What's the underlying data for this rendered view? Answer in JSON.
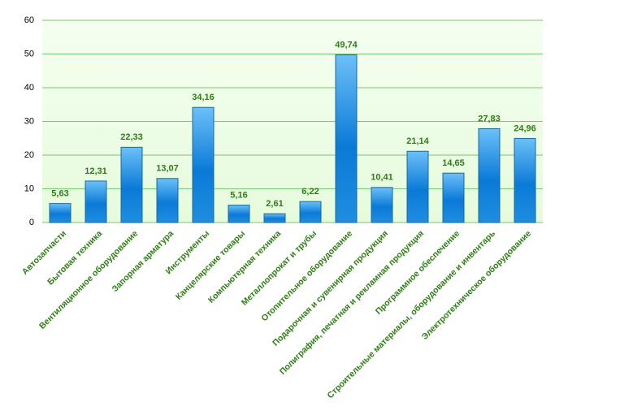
{
  "chart_data": {
    "type": "bar",
    "categories": [
      "Автозапчасти",
      "Бытовая техника",
      "Вентиляционное оборудование",
      "Запорная арматура",
      "Инструменты",
      "Канцелярские товары",
      "Компьютерная техника",
      "Металлопрокат и трубы",
      "Отопительное оборудование",
      "Подарочная и сувенирная продукция",
      "Полиграфия, печатная и рекламная продукция",
      "Программное обеспечение",
      "Строительные материалы, оборудование и инвентарь",
      "Электротехническое оборудование"
    ],
    "values": [
      5.63,
      12.31,
      22.33,
      13.07,
      34.16,
      5.16,
      2.61,
      6.22,
      49.74,
      10.41,
      21.14,
      14.65,
      27.83,
      24.96
    ],
    "value_labels": [
      "5,63",
      "12,31",
      "22,33",
      "13,07",
      "34,16",
      "5,16",
      "2,61",
      "6,22",
      "49,74",
      "10,41",
      "21,14",
      "14,65",
      "27,83",
      "24,96"
    ],
    "color": "#0a7ad8",
    "ylim": [
      0,
      60
    ],
    "yticks": [
      0,
      10,
      20,
      30,
      40,
      50,
      60
    ],
    "grid": true
  }
}
